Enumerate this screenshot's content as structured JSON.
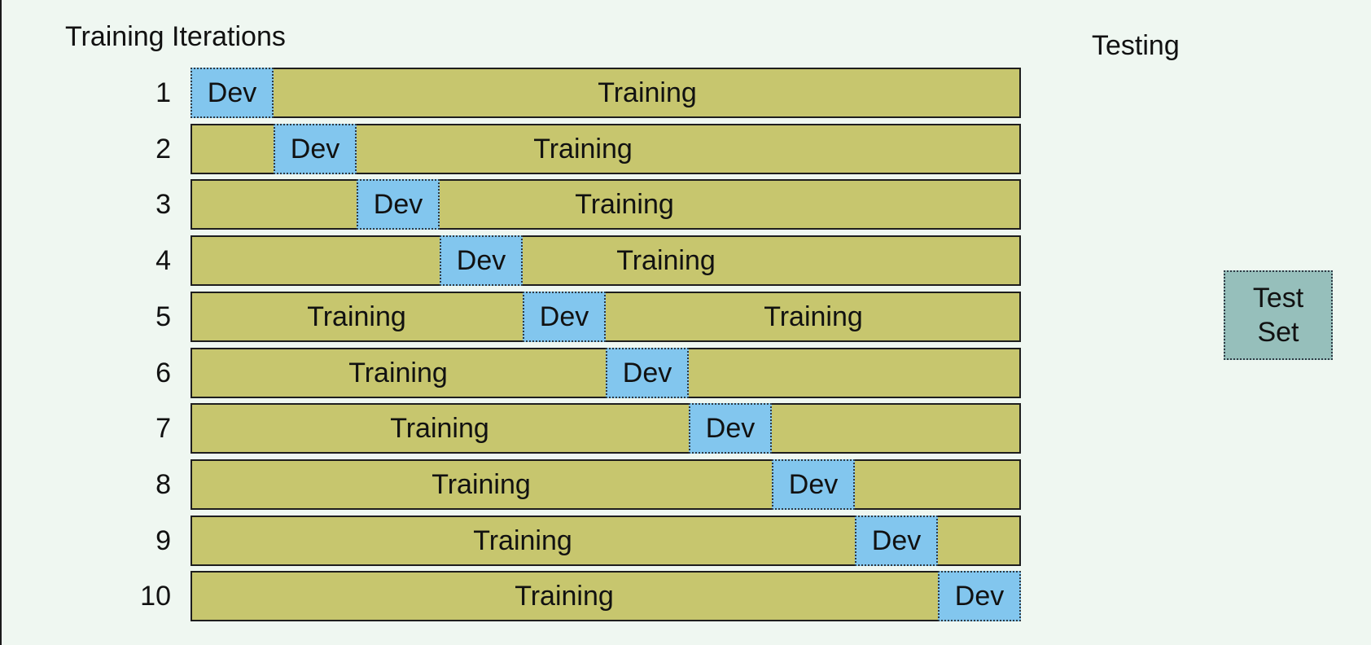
{
  "title": "Training Iterations",
  "testing_heading": "Testing",
  "segment_count": 10,
  "rows": [
    {
      "label": "1",
      "dev_index": 0,
      "training_labels": [
        "Training"
      ]
    },
    {
      "label": "2",
      "dev_index": 1,
      "training_labels": [
        "Training"
      ]
    },
    {
      "label": "3",
      "dev_index": 2,
      "training_labels": [
        "Training"
      ]
    },
    {
      "label": "4",
      "dev_index": 3,
      "training_labels": [
        "Training"
      ]
    },
    {
      "label": "5",
      "dev_index": 4,
      "training_labels": [
        "Training",
        "Training"
      ]
    },
    {
      "label": "6",
      "dev_index": 5,
      "training_labels": [
        "Training"
      ]
    },
    {
      "label": "7",
      "dev_index": 6,
      "training_labels": [
        "Training"
      ]
    },
    {
      "label": "8",
      "dev_index": 7,
      "training_labels": [
        "Training"
      ]
    },
    {
      "label": "9",
      "dev_index": 8,
      "training_labels": [
        "Training"
      ]
    },
    {
      "label": "10",
      "dev_index": 9,
      "training_labels": [
        "Training"
      ]
    }
  ],
  "dev_label": "Dev",
  "test_set": {
    "line1": "Test",
    "line2": "Set"
  },
  "colors": {
    "training": "#c7c66e",
    "dev": "#82c6ee",
    "test_set": "#96bfbb",
    "background": "#eff7f1"
  }
}
